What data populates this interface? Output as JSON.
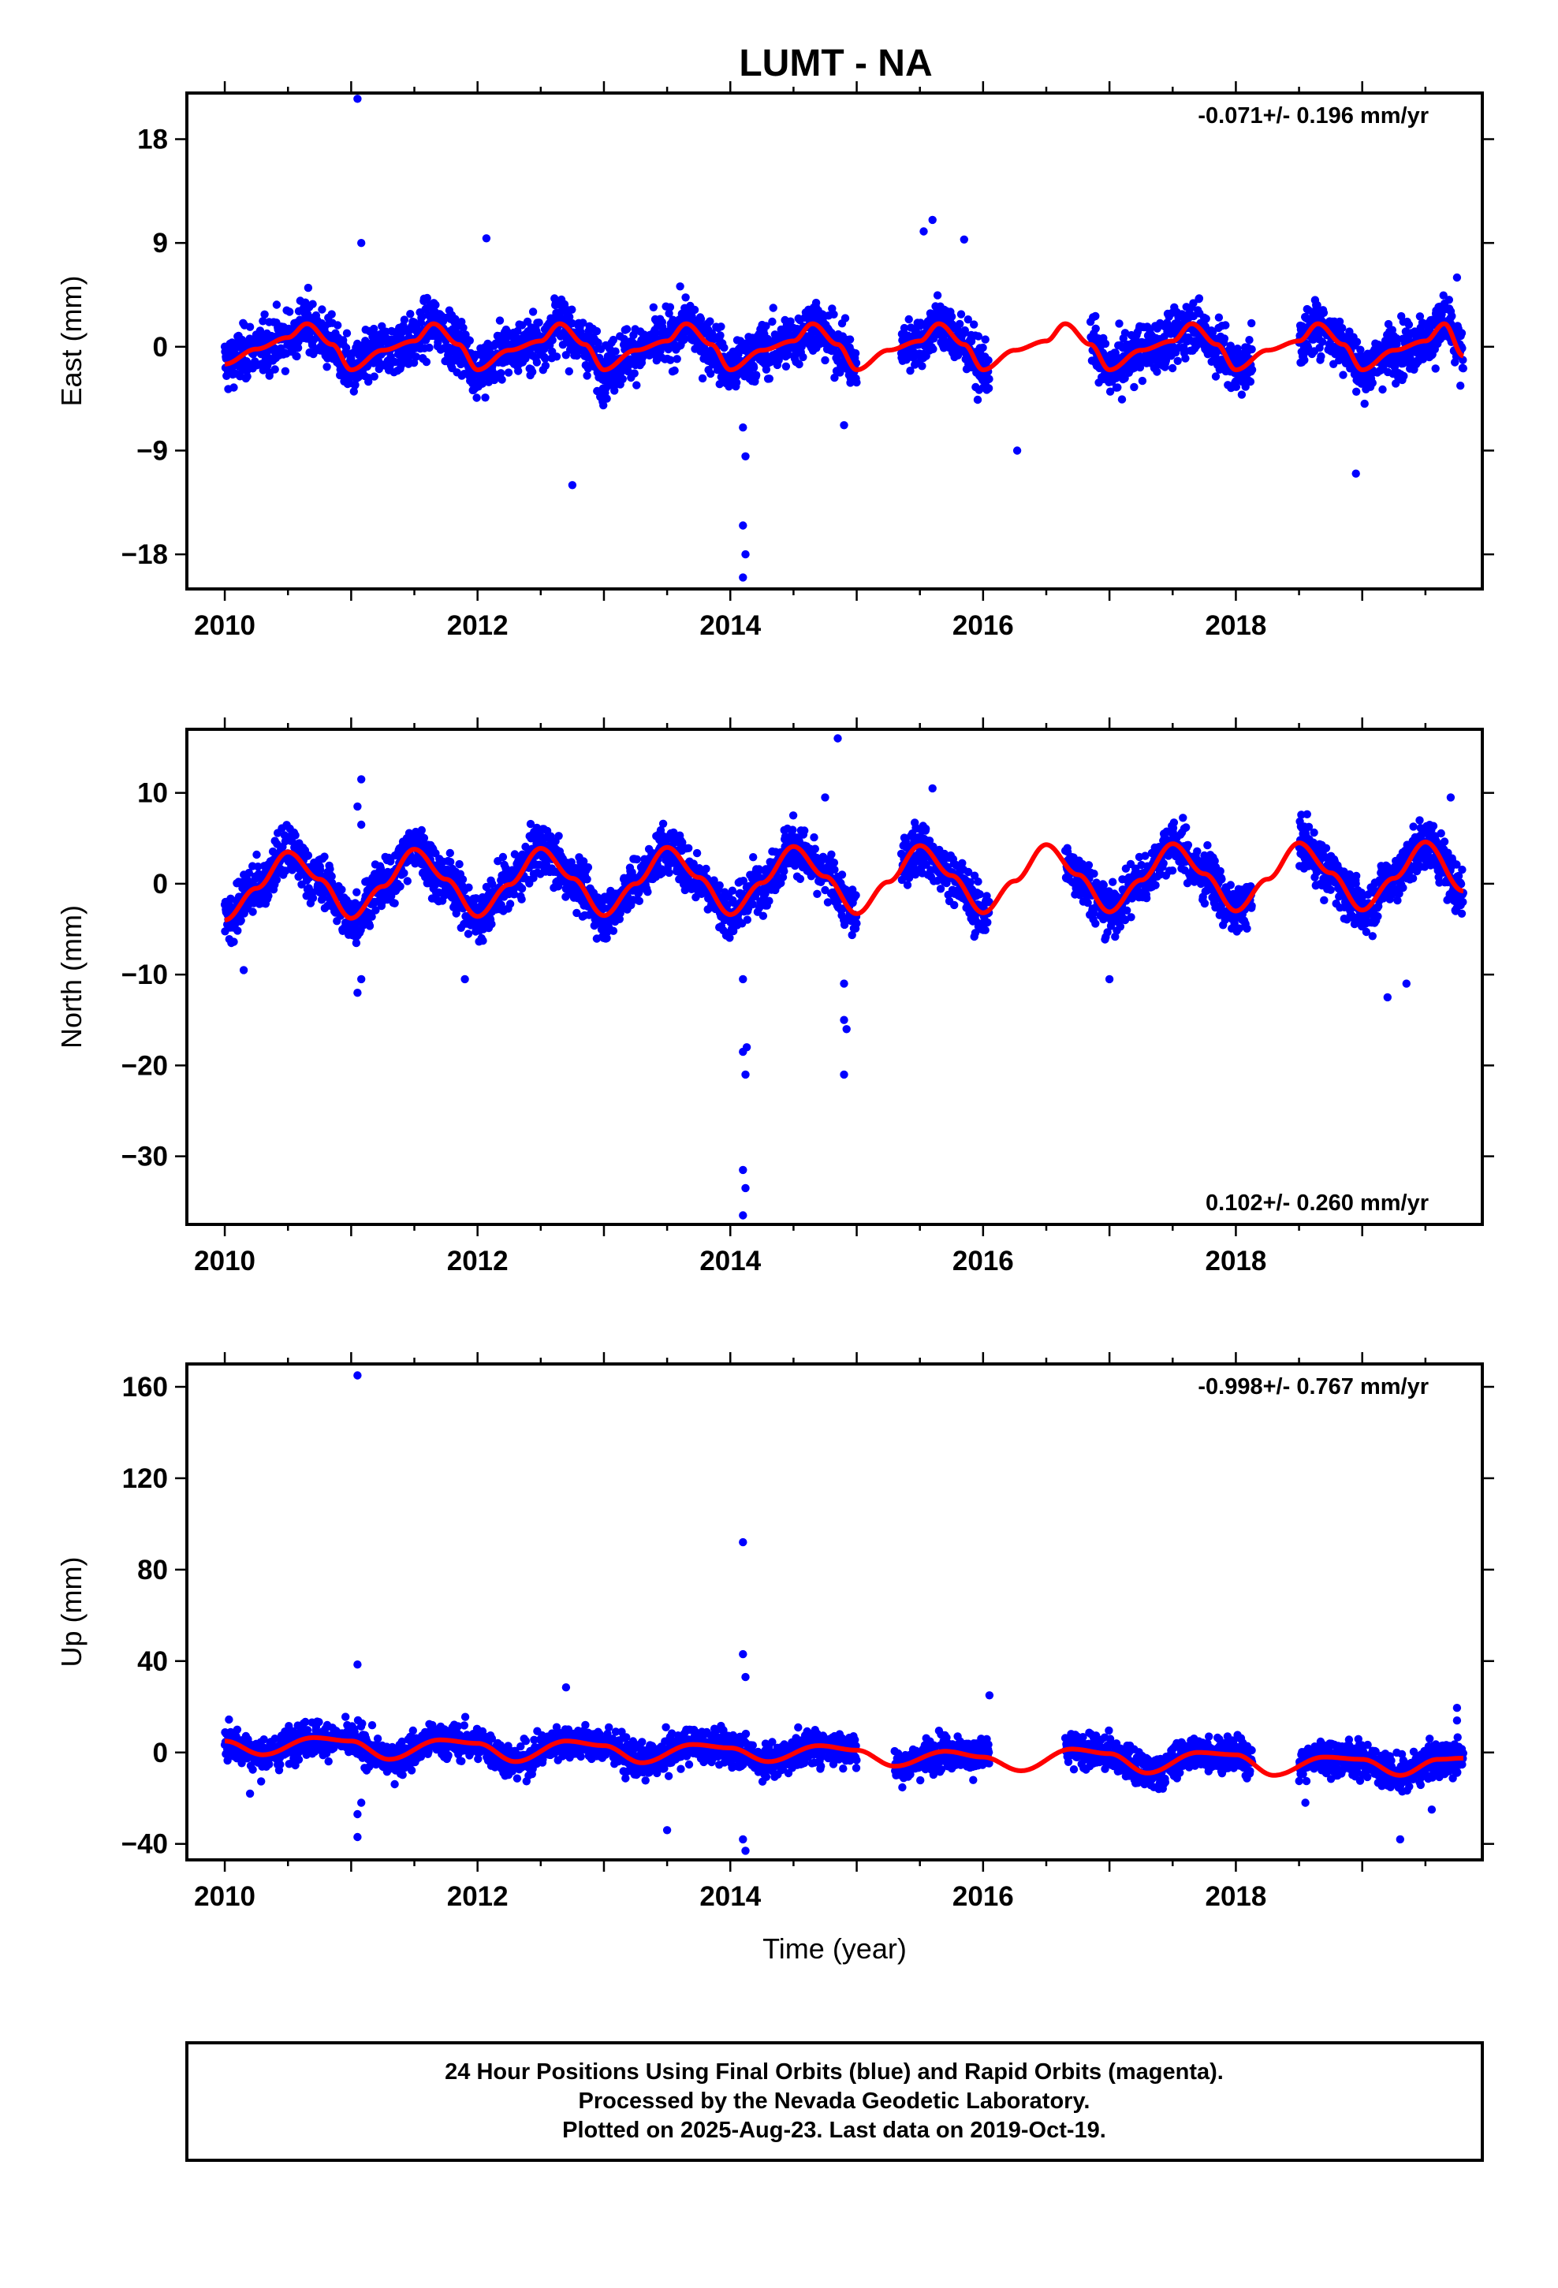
{
  "title": "LUMT - NA",
  "colors": {
    "points": "#0000ff",
    "model": "#ff0000",
    "frame": "#000000"
  },
  "chart_data": [
    {
      "type": "scatter",
      "ylabel": "East (mm)",
      "xlabel": "",
      "rate": "-0.071+/- 0.196 mm/yr",
      "rate_position": "top-right",
      "xlim": [
        2009.7,
        2019.95
      ],
      "ylim": [
        -21,
        22
      ],
      "xticks": [
        2010,
        2012,
        2014,
        2016,
        2018
      ],
      "xtick_labels": [
        "2010",
        "2012",
        "2014",
        "2016",
        "2018"
      ],
      "yticks": [
        18,
        9,
        0,
        -9,
        -18
      ],
      "ytick_labels": [
        "18",
        "9",
        "0",
        "−9",
        "−18"
      ],
      "grid": false,
      "series": [
        {
          "kind": "daily positions",
          "gaps": [
            [
              2015.0,
              2015.35
            ],
            [
              2016.05,
              2016.85
            ],
            [
              2018.13,
              2018.5
            ]
          ],
          "end": 2019.8,
          "outliers": [
            [
              2011.05,
              21.5
            ],
            [
              2011.08,
              9.0
            ],
            [
              2012.07,
              9.4
            ],
            [
              2012.75,
              -12.0
            ],
            [
              2014.1,
              -7.0
            ],
            [
              2014.12,
              -9.5
            ],
            [
              2014.1,
              -15.5
            ],
            [
              2014.12,
              -18.0
            ],
            [
              2014.1,
              -20.0
            ],
            [
              2015.6,
              11.0
            ],
            [
              2015.53,
              10.0
            ],
            [
              2015.85,
              9.3
            ],
            [
              2016.27,
              -9.0
            ],
            [
              2018.95,
              -11.0
            ],
            [
              2019.75,
              6.0
            ],
            [
              2014.9,
              -6.8
            ]
          ]
        },
        {
          "kind": "model",
          "x": [
            2010.0,
            2010.25,
            2010.5,
            2010.65,
            2010.85,
            2011.0,
            2011.25,
            2011.5,
            2011.65,
            2011.85,
            2012.0,
            2012.25,
            2012.5,
            2012.65,
            2012.85,
            2013.0,
            2013.25,
            2013.5,
            2013.65,
            2013.85,
            2014.0,
            2014.25,
            2014.5,
            2014.65,
            2014.85,
            2015.0,
            2015.25,
            2015.5,
            2015.65,
            2015.85,
            2016.0,
            2016.25,
            2016.5,
            2016.65,
            2016.85,
            2017.0,
            2017.25,
            2017.5,
            2017.65,
            2017.85,
            2018.0,
            2018.25,
            2018.5,
            2018.65,
            2018.85,
            2019.0,
            2019.25,
            2019.5,
            2019.65,
            2019.8
          ],
          "y": [
            -1.5,
            -0.2,
            0.8,
            2.0,
            0.2,
            -2.0,
            -0.3,
            0.5,
            2.0,
            0.2,
            -2.0,
            -0.3,
            0.5,
            2.0,
            0.2,
            -2.0,
            -0.3,
            0.5,
            2.0,
            0.2,
            -2.0,
            -0.3,
            0.5,
            2.0,
            0.2,
            -2.0,
            -0.3,
            0.5,
            2.0,
            0.2,
            -2.0,
            -0.3,
            0.5,
            2.0,
            0.2,
            -2.0,
            -0.3,
            0.5,
            2.0,
            0.2,
            -2.0,
            -0.3,
            0.5,
            2.0,
            0.2,
            -2.0,
            -0.3,
            0.5,
            2.0,
            -0.8
          ]
        }
      ]
    },
    {
      "type": "scatter",
      "ylabel": "North (mm)",
      "xlabel": "",
      "rate": "0.102+/- 0.260 mm/yr",
      "rate_position": "bottom-right",
      "xlim": [
        2009.7,
        2019.95
      ],
      "ylim": [
        -37.5,
        17
      ],
      "xticks": [
        2010,
        2012,
        2014,
        2016,
        2018
      ],
      "xtick_labels": [
        "2010",
        "2012",
        "2014",
        "2016",
        "2018"
      ],
      "yticks": [
        10,
        0,
        -10,
        -20,
        -30
      ],
      "ytick_labels": [
        "10",
        "0",
        "−10",
        "−20",
        "−30"
      ],
      "grid": false,
      "series": [
        {
          "kind": "daily positions",
          "gaps": [
            [
              2015.0,
              2015.35
            ],
            [
              2016.05,
              2016.65
            ],
            [
              2018.13,
              2018.5
            ]
          ],
          "end": 2019.8,
          "outliers": [
            [
              2011.08,
              11.5
            ],
            [
              2011.05,
              8.5
            ],
            [
              2011.08,
              6.5
            ],
            [
              2011.05,
              -12.0
            ],
            [
              2011.08,
              -10.5
            ],
            [
              2010.15,
              -9.5
            ],
            [
              2011.9,
              -10.5
            ],
            [
              2014.1,
              -10.5
            ],
            [
              2014.13,
              -18.0
            ],
            [
              2014.1,
              -18.5
            ],
            [
              2014.12,
              -21.0
            ],
            [
              2014.1,
              -31.5
            ],
            [
              2014.12,
              -33.5
            ],
            [
              2014.1,
              -36.5
            ],
            [
              2014.85,
              16.0
            ],
            [
              2014.9,
              -11.0
            ],
            [
              2014.9,
              -15.0
            ],
            [
              2014.92,
              -16.0
            ],
            [
              2014.9,
              -21.0
            ],
            [
              2014.75,
              9.5
            ],
            [
              2015.6,
              10.5
            ],
            [
              2017.0,
              -10.5
            ],
            [
              2019.2,
              -12.5
            ],
            [
              2019.35,
              -11.0
            ],
            [
              2019.7,
              9.5
            ]
          ]
        },
        {
          "kind": "model",
          "x": [
            2010.0,
            2010.25,
            2010.5,
            2010.75,
            2011.0,
            2011.25,
            2011.5,
            2011.75,
            2012.0,
            2012.25,
            2012.5,
            2012.75,
            2013.0,
            2013.25,
            2013.5,
            2013.75,
            2014.0,
            2014.25,
            2014.5,
            2014.75,
            2015.0,
            2015.25,
            2015.5,
            2015.75,
            2016.0,
            2016.25,
            2016.5,
            2016.75,
            2017.0,
            2017.25,
            2017.5,
            2017.75,
            2018.0,
            2018.25,
            2018.5,
            2018.75,
            2019.0,
            2019.25,
            2019.5,
            2019.8
          ],
          "y": [
            -4.0,
            -0.5,
            3.5,
            0.5,
            -3.8,
            -0.3,
            3.8,
            0.5,
            -3.6,
            -0.1,
            3.9,
            0.6,
            -3.5,
            0.0,
            4.0,
            0.7,
            -3.4,
            0.1,
            4.1,
            0.8,
            -3.3,
            0.2,
            4.2,
            0.9,
            -3.2,
            0.3,
            4.3,
            1.0,
            -3.1,
            0.4,
            4.4,
            1.1,
            -3.0,
            0.5,
            4.5,
            1.2,
            -2.9,
            0.6,
            4.6,
            -0.8
          ]
        }
      ]
    },
    {
      "type": "scatter",
      "ylabel": "Up (mm)",
      "xlabel": "Time (year)",
      "rate": "-0.998+/- 0.767 mm/yr",
      "rate_position": "top-right",
      "xlim": [
        2009.7,
        2019.95
      ],
      "ylim": [
        -47,
        170
      ],
      "xticks": [
        2010,
        2012,
        2014,
        2016,
        2018
      ],
      "xtick_labels": [
        "2010",
        "2012",
        "2014",
        "2016",
        "2018"
      ],
      "yticks": [
        160,
        120,
        80,
        40,
        0,
        -40
      ],
      "ytick_labels": [
        "160",
        "120",
        "80",
        "40",
        "0",
        "−40"
      ],
      "grid": false,
      "series": [
        {
          "kind": "daily positions",
          "gaps": [
            [
              2015.0,
              2015.3
            ],
            [
              2016.05,
              2016.65
            ],
            [
              2018.13,
              2018.5
            ]
          ],
          "end": 2019.8,
          "outliers": [
            [
              2011.05,
              165.0
            ],
            [
              2011.05,
              38.5
            ],
            [
              2011.05,
              -37.0
            ],
            [
              2011.08,
              -22.0
            ],
            [
              2011.05,
              -27.0
            ],
            [
              2012.7,
              28.5
            ],
            [
              2013.5,
              -34.0
            ],
            [
              2014.1,
              92.0
            ],
            [
              2014.1,
              43.0
            ],
            [
              2014.12,
              33.0
            ],
            [
              2014.1,
              -38.0
            ],
            [
              2014.12,
              -43.0
            ],
            [
              2016.05,
              25.0
            ],
            [
              2019.3,
              -38.0
            ],
            [
              2019.75,
              19.5
            ],
            [
              2019.75,
              14.0
            ],
            [
              2019.55,
              -25.0
            ],
            [
              2018.55,
              -22.0
            ],
            [
              2010.2,
              -18.0
            ]
          ]
        },
        {
          "kind": "model",
          "x": [
            2010.0,
            2010.3,
            2010.7,
            2011.0,
            2011.3,
            2011.7,
            2012.0,
            2012.3,
            2012.7,
            2013.0,
            2013.3,
            2013.7,
            2014.0,
            2014.3,
            2014.7,
            2015.0,
            2015.3,
            2015.7,
            2016.0,
            2016.3,
            2016.7,
            2017.0,
            2017.3,
            2017.7,
            2018.0,
            2018.3,
            2018.7,
            2019.0,
            2019.3,
            2019.6,
            2019.8
          ],
          "y": [
            5.0,
            -1.0,
            6.5,
            5.0,
            -3.0,
            5.5,
            4.0,
            -4.0,
            5.0,
            3.0,
            -4.5,
            3.5,
            2.0,
            -4.0,
            3.0,
            1.0,
            -6.0,
            0.5,
            -2.0,
            -8.0,
            1.5,
            -0.5,
            -9.0,
            0.0,
            -1.0,
            -10.0,
            -2.0,
            -3.0,
            -10.0,
            -3.0,
            -2.5
          ]
        }
      ]
    }
  ],
  "footer": {
    "line1": "24 Hour Positions Using Final Orbits (blue) and Rapid Orbits (magenta).",
    "line2": "Processed by the Nevada Geodetic Laboratory.",
    "line3": "Plotted on 2025-Aug-23. Last data on 2019-Oct-19."
  }
}
